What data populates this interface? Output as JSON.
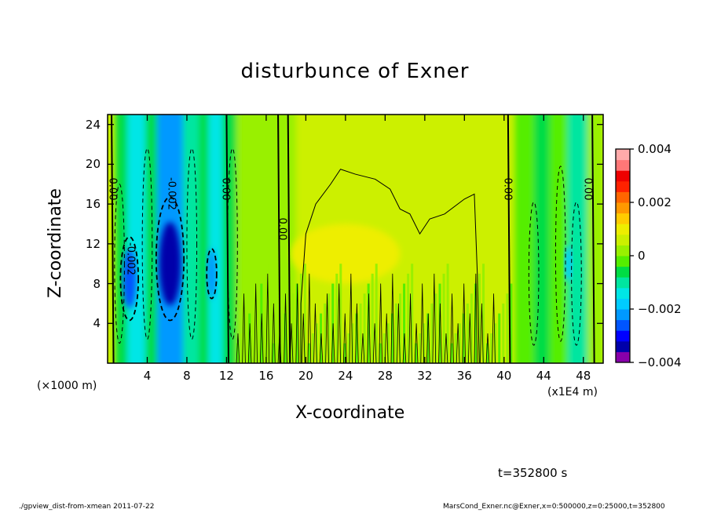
{
  "chart_data": {
    "type": "heatmap",
    "title": "disturbunce of Exner",
    "xlabel": "X-coordinate",
    "ylabel": "Z-coordinate",
    "x_unit_label": "(×1000 m)",
    "x_unit_label_right": "(x1E4 m)",
    "xlim": [
      0,
      50
    ],
    "ylim": [
      0,
      25
    ],
    "x_ticks": [
      "4",
      "8",
      "12",
      "16",
      "20",
      "24",
      "28",
      "32",
      "36",
      "40",
      "44",
      "48"
    ],
    "x_tick_values": [
      4,
      8,
      12,
      16,
      20,
      24,
      28,
      32,
      36,
      40,
      44,
      48
    ],
    "y_ticks": [
      "4",
      "8",
      "12",
      "16",
      "20",
      "24"
    ],
    "y_tick_values": [
      4,
      8,
      12,
      16,
      20,
      24
    ],
    "colorbar": {
      "range": [
        -0.004,
        0.004
      ],
      "tick_labels": [
        "0.004",
        "0.002",
        "0",
        "−0.002",
        "−0.004"
      ],
      "tick_values": [
        0.004,
        0.002,
        0,
        -0.002,
        -0.004
      ],
      "colors": [
        "#8800aa",
        "#0000aa",
        "#0000ff",
        "#0055ff",
        "#0099ff",
        "#00ccff",
        "#00e6e6",
        "#00e6a0",
        "#00dd44",
        "#55ee00",
        "#99f000",
        "#ccf000",
        "#eeee00",
        "#ffcc00",
        "#ff9900",
        "#ff6600",
        "#ff2200",
        "#ee0000",
        "#ff7777",
        "#ffaaaa"
      ]
    },
    "bands": [
      {
        "x": 0.8,
        "w": 1.2,
        "value": -0.0008
      },
      {
        "x": 2.0,
        "w": 1.8,
        "value": -0.0016
      },
      {
        "x": 3.8,
        "w": 1.2,
        "value": -0.0008
      },
      {
        "x": 5.0,
        "w": 2.6,
        "value": -0.0024
      },
      {
        "x": 7.6,
        "w": 1.6,
        "value": -0.0012
      },
      {
        "x": 9.2,
        "w": 1.0,
        "value": -0.0008
      },
      {
        "x": 10.2,
        "w": 1.4,
        "value": -0.0016
      },
      {
        "x": 11.6,
        "w": 1.4,
        "value": -0.0006
      },
      {
        "x": 13.0,
        "w": 4.0,
        "value": 0.0003
      },
      {
        "x": 17.0,
        "w": 2.0,
        "value": 0.0001
      },
      {
        "x": 19.0,
        "w": 18.0,
        "value": 0.0007
      },
      {
        "x": 37.0,
        "w": 4.0,
        "value": 0.0004
      },
      {
        "x": 41.0,
        "w": 2.0,
        "value": -0.0001
      },
      {
        "x": 43.0,
        "w": 1.6,
        "value": -0.0006
      },
      {
        "x": 44.6,
        "w": 1.8,
        "value": -0.0004
      },
      {
        "x": 46.4,
        "w": 2.0,
        "value": -0.0012
      },
      {
        "x": 48.4,
        "w": 1.6,
        "value": 0.0002
      }
    ],
    "blobs": [
      {
        "x": 6.3,
        "z": 10.0,
        "rx": 1.1,
        "rz": 4.2,
        "value": -0.0032
      },
      {
        "x": 2.2,
        "z": 8.5,
        "rx": 0.7,
        "rz": 3.0,
        "value": -0.0026
      },
      {
        "x": 10.5,
        "z": 9.0,
        "rx": 0.5,
        "rz": 2.5,
        "value": -0.0022
      },
      {
        "x": 24.0,
        "z": 11.0,
        "rx": 5.5,
        "rz": 3.0,
        "value": 0.0011
      },
      {
        "x": 46.5,
        "z": 10.0,
        "rx": 0.4,
        "rz": 1.8,
        "value": -0.0018
      }
    ],
    "contour_labels": [
      "0.00",
      "-0.002",
      "0.00",
      "0.00",
      "-0.002",
      "0.00",
      "0.00"
    ],
    "time_label": "t=352800 s"
  },
  "footer": {
    "left": "./gpview_dist-from-xmean  2011-07-22",
    "right": "MarsCond_Exner.nc@Exner,x=0:500000,z=0:25000,t=352800"
  }
}
